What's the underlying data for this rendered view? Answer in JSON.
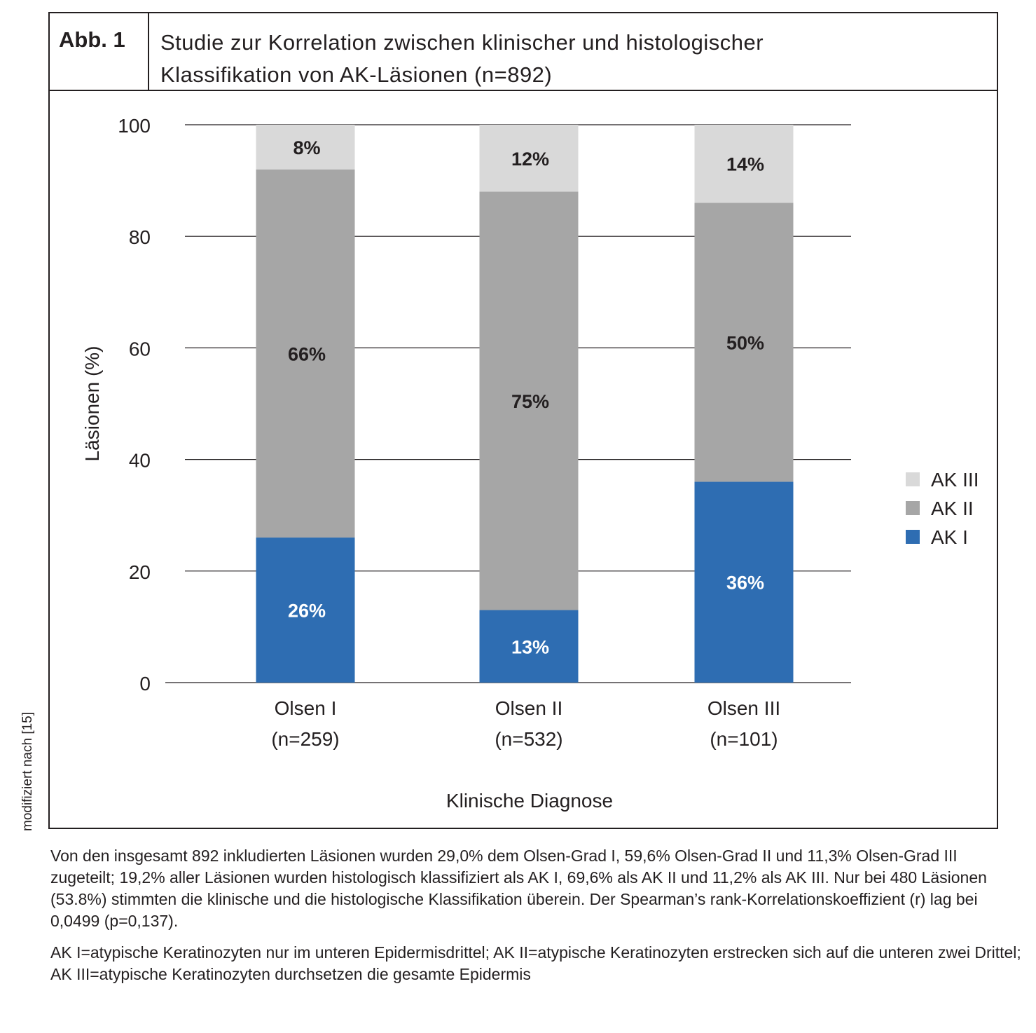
{
  "figure": {
    "label": "Abb. 1",
    "title_line1": "Studie zur Korrelation zwischen klinischer und histologischer",
    "title_line2": "Klassifikation von AK-Läsionen (n=892)"
  },
  "side_credit": "modifiziert nach [15]",
  "caption": {
    "main": "Von den insgesamt 892 inkludierten Läsionen wurden 29,0% dem Olsen-Grad I, 59,6% Olsen-Grad II und 11,3% Olsen-Grad III zugeteilt; 19,2% aller Läsionen wurden histologisch klassifiziert als AK I, 69,6% als AK II und 11,2% als AK III. Nur bei 480 Läsionen (53.8%) stimmten die klinische und die histologische Klassifikation überein. Der Spearman’s rank-Korrelationskoeffizient (r) lag bei 0,0499 (p=0,137).",
    "note": "AK I=atypische Keratinozyten nur im unteren Epidermisdrittel; AK II=atypische Keratinozyten erstrecken sich auf die unteren zwei Drittel; AK III=atypische Keratinozyten durchsetzen die gesamte Epidermis"
  },
  "chart_data": {
    "type": "bar",
    "stacked": true,
    "categories": [
      "Olsen I",
      "Olsen II",
      "Olsen III"
    ],
    "category_sublabels": [
      "(n=259)",
      "(n=532)",
      "(n=101)"
    ],
    "series": [
      {
        "name": "AK I",
        "values": [
          26,
          13,
          36
        ],
        "labels": [
          "26%",
          "13%",
          "36%"
        ],
        "color": "#2e6db2",
        "label_color": "#ffffff"
      },
      {
        "name": "AK II",
        "values": [
          66,
          75,
          50
        ],
        "labels": [
          "66%",
          "75%",
          "50%"
        ],
        "color": "#a6a6a6",
        "label_color": "#231f20"
      },
      {
        "name": "AK III",
        "values": [
          8,
          12,
          14
        ],
        "labels": [
          "8%",
          "12%",
          "14%"
        ],
        "color": "#d9d9d9",
        "label_color": "#231f20"
      }
    ],
    "legend_order": [
      "AK III",
      "AK II",
      "AK I"
    ],
    "legend_position": "right",
    "xlabel": "Klinische Diagnose",
    "ylabel": "Läsionen (%)",
    "ylim": [
      0,
      100
    ],
    "yticks": [
      0,
      20,
      40,
      60,
      80,
      100
    ],
    "grid": true
  }
}
